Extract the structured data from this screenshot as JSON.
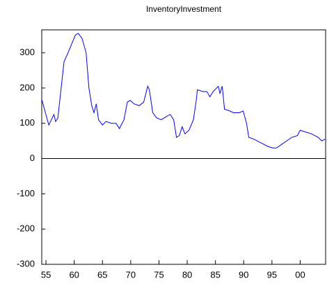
{
  "chart_data": {
    "type": "line",
    "title": "InventoryInvestment",
    "x": [
      1954.3,
      1955.5,
      1956.1,
      1956.4,
      1956.7,
      1957.1,
      1958.2,
      1958.9,
      1960.2,
      1960.7,
      1961.4,
      1962.1,
      1962.6,
      1963.1,
      1963.5,
      1963.9,
      1964.3,
      1965.0,
      1965.6,
      1966.6,
      1967.4,
      1968.0,
      1968.8,
      1969.4,
      1969.9,
      1970.6,
      1971.5,
      1972.3,
      1973.0,
      1973.3,
      1973.9,
      1974.6,
      1975.4,
      1976.4,
      1977.0,
      1977.6,
      1978.1,
      1978.6,
      1979.1,
      1979.6,
      1980.3,
      1981.1,
      1981.6,
      1981.8,
      1982.8,
      1983.5,
      1984.0,
      1984.6,
      1985.5,
      1985.8,
      1986.2,
      1986.6,
      1987.5,
      1988.2,
      1989.2,
      1989.9,
      1990.5,
      1990.9,
      1991.8,
      1993.0,
      1994.2,
      1995.1,
      1995.8,
      1996.7,
      1997.6,
      1998.5,
      1999.5,
      2000.0,
      2001.0,
      2002.0,
      2003.2,
      2003.8,
      2004.4
    ],
    "values": [
      165,
      95,
      115,
      125,
      105,
      115,
      275,
      300,
      350,
      355,
      340,
      300,
      200,
      150,
      130,
      155,
      110,
      95,
      105,
      100,
      100,
      85,
      110,
      160,
      165,
      155,
      150,
      160,
      205,
      195,
      130,
      115,
      110,
      120,
      125,
      110,
      60,
      65,
      90,
      70,
      80,
      110,
      165,
      195,
      190,
      190,
      175,
      190,
      205,
      185,
      205,
      140,
      135,
      130,
      130,
      135,
      100,
      60,
      55,
      45,
      35,
      30,
      30,
      40,
      50,
      60,
      65,
      80,
      75,
      70,
      60,
      50,
      55
    ],
    "color": "#0000ff",
    "xlim": [
      1954.25,
      2004.5
    ],
    "xticks": [
      {
        "value": 1955,
        "label": "55"
      },
      {
        "value": 1960,
        "label": "60"
      },
      {
        "value": 1965,
        "label": "65"
      },
      {
        "value": 1970,
        "label": "70"
      },
      {
        "value": 1975,
        "label": "75"
      },
      {
        "value": 1980,
        "label": "80"
      },
      {
        "value": 1985,
        "label": "85"
      },
      {
        "value": 1990,
        "label": "90"
      },
      {
        "value": 1995,
        "label": "95"
      },
      {
        "value": 2000,
        "label": "00"
      }
    ],
    "ylim": [
      -300,
      365
    ],
    "yticks": [
      -300,
      -200,
      -100,
      0,
      100,
      200,
      300
    ]
  }
}
